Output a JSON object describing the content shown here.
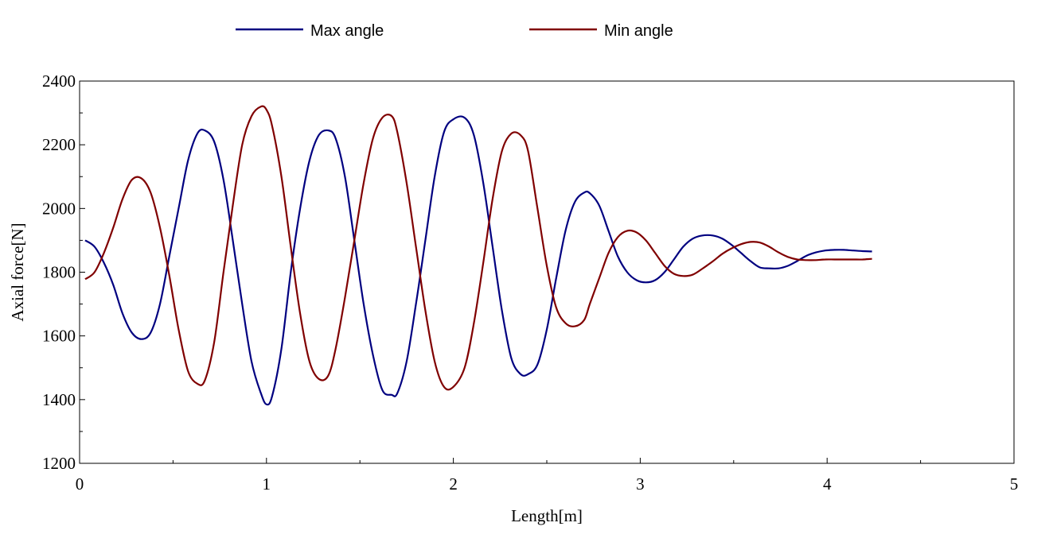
{
  "chart_data": {
    "type": "line",
    "title": "",
    "xlabel": "Length[m]",
    "ylabel": "Axial force[N]",
    "xlim": [
      0,
      5
    ],
    "ylim": [
      1200,
      2400
    ],
    "xticks": [
      0,
      1,
      2,
      3,
      4,
      5
    ],
    "xtick_labels": [
      "0",
      "1",
      "2",
      "3",
      "4",
      "5"
    ],
    "yticks": [
      1200,
      1400,
      1600,
      1800,
      2000,
      2200,
      2400
    ],
    "ytick_labels": [
      "1200",
      "1400",
      "1600",
      "1800",
      "2000",
      "2200",
      "2400"
    ],
    "grid": false,
    "legend_position": "top",
    "series": [
      {
        "name": "Max angle",
        "color": "#000080",
        "x": [
          0.03,
          0.08,
          0.13,
          0.18,
          0.23,
          0.28,
          0.33,
          0.38,
          0.43,
          0.48,
          0.53,
          0.58,
          0.63,
          0.67,
          0.72,
          0.77,
          0.82,
          0.87,
          0.92,
          0.97,
          1.0,
          1.03,
          1.08,
          1.13,
          1.18,
          1.23,
          1.28,
          1.33,
          1.37,
          1.42,
          1.47,
          1.52,
          1.57,
          1.62,
          1.67,
          1.7,
          1.75,
          1.8,
          1.85,
          1.9,
          1.95,
          2.0,
          2.06,
          2.11,
          2.16,
          2.21,
          2.26,
          2.31,
          2.36,
          2.4,
          2.45,
          2.5,
          2.55,
          2.6,
          2.65,
          2.7,
          2.73,
          2.78,
          2.83,
          2.88,
          2.93,
          2.98,
          3.03,
          3.08,
          3.13,
          3.18,
          3.23,
          3.28,
          3.33,
          3.39,
          3.44,
          3.49,
          3.54,
          3.59,
          3.64,
          3.69,
          3.74,
          3.79,
          3.84,
          3.89,
          3.94,
          3.99,
          4.04,
          4.09,
          4.14,
          4.19,
          4.24
        ],
        "values": [
          1900,
          1880,
          1830,
          1760,
          1670,
          1610,
          1590,
          1610,
          1700,
          1850,
          2000,
          2150,
          2235,
          2245,
          2210,
          2090,
          1900,
          1700,
          1520,
          1420,
          1385,
          1410,
          1560,
          1800,
          2000,
          2150,
          2230,
          2245,
          2220,
          2100,
          1900,
          1700,
          1540,
          1430,
          1415,
          1420,
          1520,
          1700,
          1900,
          2100,
          2240,
          2280,
          2285,
          2230,
          2080,
          1880,
          1680,
          1530,
          1480,
          1480,
          1510,
          1620,
          1780,
          1930,
          2020,
          2050,
          2048,
          2010,
          1930,
          1850,
          1800,
          1775,
          1768,
          1775,
          1800,
          1840,
          1880,
          1905,
          1915,
          1915,
          1905,
          1885,
          1860,
          1835,
          1815,
          1812,
          1812,
          1820,
          1835,
          1852,
          1862,
          1868,
          1870,
          1870,
          1868,
          1866,
          1865
        ]
      },
      {
        "name": "Min angle",
        "color": "#800000",
        "x": [
          0.03,
          0.08,
          0.13,
          0.18,
          0.23,
          0.28,
          0.33,
          0.38,
          0.43,
          0.48,
          0.53,
          0.58,
          0.63,
          0.67,
          0.72,
          0.77,
          0.82,
          0.87,
          0.92,
          0.97,
          1.0,
          1.03,
          1.08,
          1.13,
          1.18,
          1.23,
          1.28,
          1.33,
          1.37,
          1.42,
          1.47,
          1.52,
          1.57,
          1.62,
          1.67,
          1.7,
          1.75,
          1.8,
          1.85,
          1.9,
          1.95,
          2.0,
          2.06,
          2.11,
          2.16,
          2.21,
          2.26,
          2.31,
          2.36,
          2.4,
          2.45,
          2.5,
          2.55,
          2.6,
          2.65,
          2.7,
          2.73,
          2.78,
          2.83,
          2.88,
          2.93,
          2.98,
          3.03,
          3.08,
          3.13,
          3.18,
          3.23,
          3.28,
          3.33,
          3.39,
          3.44,
          3.49,
          3.54,
          3.59,
          3.64,
          3.69,
          3.74,
          3.79,
          3.84,
          3.89,
          3.94,
          3.99,
          4.04,
          4.09,
          4.14,
          4.19,
          4.24
        ],
        "values": [
          1778,
          1800,
          1860,
          1940,
          2030,
          2090,
          2095,
          2050,
          1940,
          1790,
          1620,
          1490,
          1450,
          1460,
          1580,
          1800,
          2010,
          2200,
          2290,
          2320,
          2310,
          2260,
          2100,
          1880,
          1670,
          1520,
          1465,
          1475,
          1560,
          1720,
          1900,
          2080,
          2220,
          2285,
          2290,
          2240,
          2080,
          1880,
          1680,
          1520,
          1440,
          1440,
          1500,
          1640,
          1830,
          2030,
          2180,
          2235,
          2230,
          2180,
          2000,
          1820,
          1690,
          1640,
          1630,
          1650,
          1700,
          1780,
          1860,
          1910,
          1930,
          1925,
          1900,
          1860,
          1820,
          1795,
          1788,
          1792,
          1810,
          1835,
          1858,
          1875,
          1888,
          1895,
          1893,
          1880,
          1862,
          1848,
          1840,
          1838,
          1838,
          1840,
          1840,
          1840,
          1840,
          1840,
          1842
        ]
      }
    ]
  }
}
